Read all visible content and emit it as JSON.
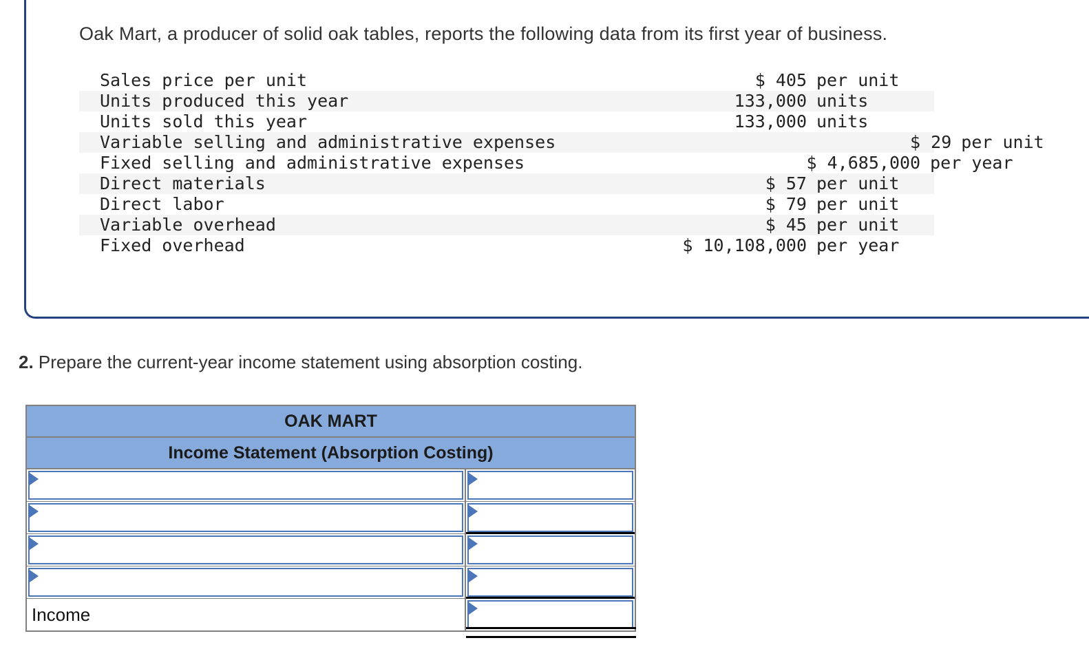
{
  "colors": {
    "navy": "#24427F",
    "header-blue": "#85AADB",
    "input-blue": "#4B76B9",
    "grid-gray": "#808080",
    "stripe": "#F4F4F4"
  },
  "intro": {
    "title": "Oak Mart, a producer of solid oak tables, reports the following data from its first year of business.",
    "rows": [
      {
        "label": "Sales price per unit",
        "amount": "$ 405",
        "unit": "per unit"
      },
      {
        "label": "Units produced this year",
        "amount": "133,000",
        "unit": "units"
      },
      {
        "label": "Units sold this year",
        "amount": "133,000",
        "unit": "units"
      },
      {
        "label": "Variable selling and administrative expenses",
        "amount": "$ 29",
        "unit": "per unit"
      },
      {
        "label": "Fixed selling and administrative expenses",
        "amount": "$ 4,685,000",
        "unit": "per year"
      },
      {
        "label": "Direct materials",
        "amount": "$ 57",
        "unit": "per unit"
      },
      {
        "label": "Direct labor",
        "amount": "$ 79",
        "unit": "per unit"
      },
      {
        "label": "Variable overhead",
        "amount": "$ 45",
        "unit": "per unit"
      },
      {
        "label": "Fixed overhead",
        "amount": "$ 10,108,000",
        "unit": "per year"
      }
    ]
  },
  "question": {
    "number": "2.",
    "text": "Prepare the current-year income statement using absorption costing."
  },
  "statement": {
    "company": "OAK MART",
    "subtitle": "Income Statement (Absorption Costing)",
    "income_label": "Income",
    "rows": [
      {
        "left_value": "",
        "right_value": ""
      },
      {
        "left_value": "",
        "right_value": ""
      },
      {
        "left_value": "",
        "right_value": ""
      },
      {
        "left_value": "",
        "right_value": ""
      }
    ],
    "income_row": {
      "value": ""
    }
  }
}
